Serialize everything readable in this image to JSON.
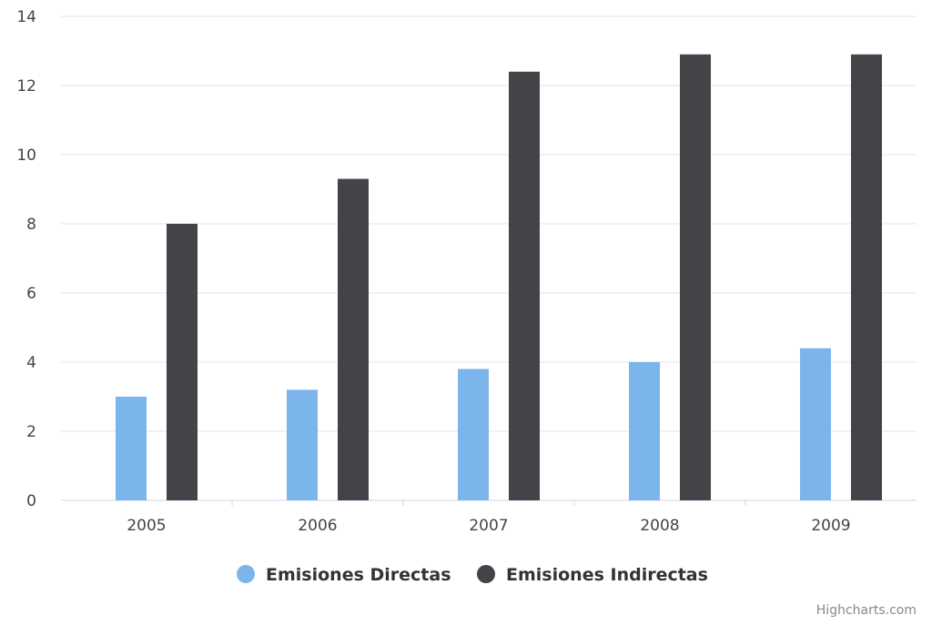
{
  "chart_data": {
    "type": "bar",
    "categories": [
      "2005",
      "2006",
      "2007",
      "2008",
      "2009"
    ],
    "series": [
      {
        "name": "Emisiones Directas",
        "color": "#7cb5ec",
        "values": [
          3.0,
          3.2,
          3.8,
          4.0,
          4.4
        ]
      },
      {
        "name": "Emisiones Indirectas",
        "color": "#434348",
        "values": [
          8.0,
          9.3,
          12.4,
          12.9,
          12.9
        ]
      }
    ],
    "ylim": [
      0,
      14
    ],
    "yticks": [
      "0",
      "2",
      "4",
      "6",
      "8",
      "10",
      "12",
      "14"
    ],
    "grid": true,
    "legend_position": "bottom-center",
    "title": "",
    "xlabel": "",
    "ylabel": ""
  },
  "credits": "Highcharts.com"
}
